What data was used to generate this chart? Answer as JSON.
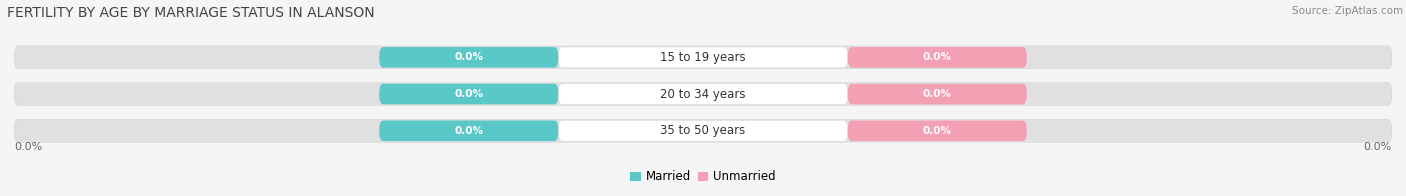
{
  "title": "FERTILITY BY AGE BY MARRIAGE STATUS IN ALANSON",
  "source": "Source: ZipAtlas.com",
  "categories": [
    "15 to 19 years",
    "20 to 34 years",
    "35 to 50 years"
  ],
  "married_values": [
    0.0,
    0.0,
    0.0
  ],
  "unmarried_values": [
    0.0,
    0.0,
    0.0
  ],
  "married_color": "#5bc8c8",
  "unmarried_color": "#f4a0b4",
  "bar_bg_color": "#e0e0e0",
  "center_label_bg": "#ffffff",
  "xlim_left": -50,
  "xlim_right": 50,
  "left_axis_label": "0.0%",
  "right_axis_label": "0.0%",
  "legend_married": "Married",
  "legend_unmarried": "Unmarried",
  "title_fontsize": 10,
  "label_fontsize": 8,
  "bg_color": "#f5f5f5",
  "title_color": "#444444",
  "source_color": "#888888",
  "axis_label_color": "#666666"
}
